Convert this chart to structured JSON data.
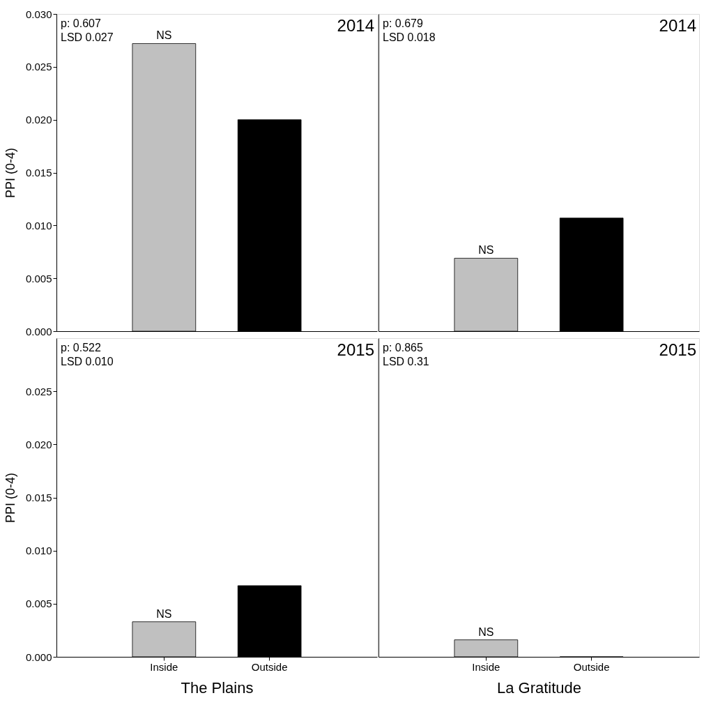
{
  "chart_data": [
    {
      "type": "bar",
      "categories": [
        "Inside",
        "Outside"
      ],
      "values": [
        0.0272,
        0.02
      ],
      "colors": [
        "#c0c0c0",
        "#000000"
      ],
      "ylabel": "PPI (0-4)",
      "ylim": [
        0,
        0.03
      ],
      "yticks": [
        {
          "value": 0,
          "label": "0.000"
        },
        {
          "value": 0.005,
          "label": "0.005"
        },
        {
          "value": 0.01,
          "label": "0.010"
        },
        {
          "value": 0.015,
          "label": "0.015"
        },
        {
          "value": 0.02,
          "label": "0.020"
        },
        {
          "value": 0.025,
          "label": "0.025"
        },
        {
          "value": 0.03,
          "label": "0.030"
        }
      ],
      "tick_labels": "y",
      "annotations": [
        "p: 0.607",
        "LSD 0.027",
        "2014",
        {
          "text": "NS",
          "x": "Inside",
          "y": 0.0272
        }
      ]
    },
    {
      "type": "bar",
      "categories": [
        "Inside",
        "Outside"
      ],
      "values": [
        0.0069,
        0.0107
      ],
      "colors": [
        "#c0c0c0",
        "#000000"
      ],
      "ylim": [
        0,
        0.03
      ],
      "tick_labels": false,
      "annotations": [
        "p: 0.679",
        "LSD 0.018",
        "2014",
        {
          "text": "NS",
          "x": "Inside",
          "y": 0.0069
        }
      ]
    },
    {
      "type": "bar",
      "categories": [
        "Inside",
        "Outside"
      ],
      "values": [
        0.0033,
        0.0067
      ],
      "colors": [
        "#c0c0c0",
        "#000000"
      ],
      "xlabel": "The Plains",
      "ylabel": "PPI (0-4)",
      "ylim": [
        0,
        0.03
      ],
      "yticks": [
        {
          "value": 0,
          "label": "0.000"
        },
        {
          "value": 0.005,
          "label": "0.005"
        },
        {
          "value": 0.01,
          "label": "0.010"
        },
        {
          "value": 0.015,
          "label": "0.015"
        },
        {
          "value": 0.02,
          "label": "0.020"
        },
        {
          "value": 0.025,
          "label": "0.025"
        }
      ],
      "annotations": [
        "p: 0.522",
        "LSD 0.010",
        "2015",
        {
          "text": "NS",
          "x": "Inside",
          "y": 0.0033
        }
      ]
    },
    {
      "type": "bar",
      "categories": [
        "Inside",
        "Outside"
      ],
      "values": [
        0.0016,
        0
      ],
      "colors": [
        "#c0c0c0",
        "#000000"
      ],
      "xlabel": "La Gratitude",
      "ylim": [
        0,
        0.03
      ],
      "tick_labels": "x",
      "annotations": [
        "p: 0.865",
        "LSD 0.31",
        "2015",
        {
          "text": "NS",
          "x": "Inside",
          "y": 0.0016
        }
      ]
    }
  ]
}
